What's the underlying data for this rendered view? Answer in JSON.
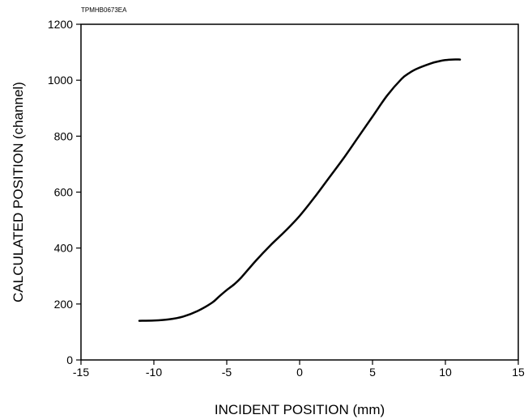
{
  "figure_code": "TPMHB0673EA",
  "chart_data": {
    "type": "line",
    "title": "",
    "xlabel": "INCIDENT POSITION (mm)",
    "ylabel": "CALCULATED POSITION (channel)",
    "xlim": [
      -15,
      15
    ],
    "ylim": [
      0,
      1200
    ],
    "x_ticks": [
      -15,
      -10,
      -5,
      0,
      5,
      10,
      15
    ],
    "y_ticks": [
      0,
      200,
      400,
      600,
      800,
      1000,
      1200
    ],
    "x_tick_labels": [
      "-15",
      "-10",
      "-5",
      "0",
      "5",
      "10",
      "15"
    ],
    "y_tick_labels": [
      "0",
      "200",
      "400",
      "600",
      "800",
      "1000",
      "1200"
    ],
    "grid": false,
    "line_color": "#000000",
    "series": [
      {
        "x": [
          -11,
          -10,
          -9,
          -8,
          -7,
          -6,
          -5.5,
          -5,
          -4.5,
          -4,
          -3,
          -2,
          -1,
          0,
          1,
          2,
          3,
          4,
          5,
          6,
          7,
          7.5,
          8,
          9,
          9.5,
          10,
          10.5,
          11
        ],
        "y": [
          140,
          141,
          145,
          155,
          175,
          205,
          228,
          250,
          270,
          295,
          355,
          410,
          460,
          515,
          580,
          650,
          720,
          795,
          870,
          945,
          1005,
          1025,
          1040,
          1060,
          1067,
          1072,
          1074,
          1074
        ]
      }
    ]
  }
}
